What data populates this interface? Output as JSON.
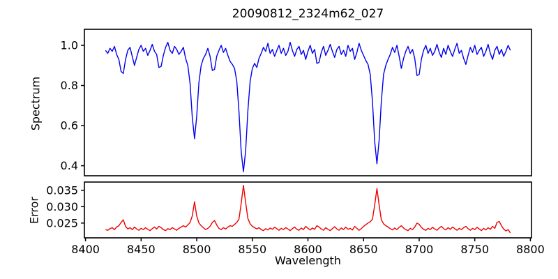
{
  "figure": {
    "title": "20090812_2324m62_027",
    "background": "#ffffff"
  },
  "chart_data": [
    {
      "type": "line",
      "panel": "spectrum",
      "title": "20090812_2324m62_027",
      "ylabel": "Spectrum",
      "line_color": "#0000ee",
      "grid": false,
      "legend": "none",
      "x_start": 8418,
      "x_step": 2,
      "xlim": [
        8399,
        8801
      ],
      "ylim": [
        0.35,
        1.08
      ],
      "yticks": [
        0.4,
        0.6,
        0.8,
        1.0
      ],
      "ytick_labels": [
        "0.4",
        "0.6",
        "0.8",
        "1.0"
      ],
      "absorption_line_centers": [
        8498,
        8542,
        8662
      ],
      "values": [
        0.975,
        0.96,
        0.985,
        0.97,
        0.995,
        0.955,
        0.93,
        0.87,
        0.86,
        0.93,
        0.975,
        0.99,
        0.945,
        0.9,
        0.94,
        0.98,
        1.0,
        0.97,
        0.985,
        0.95,
        0.975,
        1.005,
        0.97,
        0.955,
        0.89,
        0.895,
        0.95,
        0.99,
        1.015,
        0.975,
        0.96,
        0.995,
        0.98,
        0.955,
        0.97,
        0.99,
        0.935,
        0.9,
        0.81,
        0.64,
        0.535,
        0.645,
        0.815,
        0.9,
        0.935,
        0.955,
        0.985,
        0.945,
        0.875,
        0.88,
        0.945,
        0.975,
        1.0,
        0.965,
        0.985,
        0.95,
        0.92,
        0.905,
        0.885,
        0.82,
        0.67,
        0.47,
        0.37,
        0.475,
        0.675,
        0.82,
        0.885,
        0.91,
        0.89,
        0.935,
        0.96,
        0.99,
        0.97,
        1.01,
        0.96,
        0.98,
        0.945,
        0.975,
        1.0,
        0.96,
        0.985,
        0.95,
        0.97,
        1.015,
        0.975,
        0.945,
        0.98,
        0.995,
        0.955,
        0.975,
        0.93,
        0.97,
        1.0,
        0.96,
        0.98,
        0.91,
        0.915,
        0.965,
        0.995,
        0.95,
        0.975,
        1.005,
        0.97,
        0.94,
        0.98,
        0.995,
        0.955,
        0.975,
        0.945,
        1.0,
        0.97,
        0.985,
        0.93,
        0.965,
        1.01,
        0.975,
        0.95,
        0.925,
        0.905,
        0.855,
        0.72,
        0.52,
        0.41,
        0.525,
        0.72,
        0.855,
        0.9,
        0.93,
        0.955,
        0.99,
        0.965,
        1.0,
        0.945,
        0.885,
        0.935,
        0.97,
        0.995,
        0.96,
        0.98,
        0.935,
        0.85,
        0.855,
        0.93,
        0.975,
        1.0,
        0.96,
        0.985,
        0.95,
        0.97,
        1.005,
        0.965,
        0.94,
        0.985,
        0.955,
        1.0,
        0.97,
        0.945,
        0.98,
        1.01,
        0.96,
        0.975,
        0.935,
        0.905,
        0.95,
        0.99,
        0.965,
        1.0,
        0.955,
        0.975,
        0.99,
        0.945,
        0.97,
        1.005,
        0.96,
        0.93,
        0.975,
        0.995,
        0.955,
        0.98,
        0.945,
        0.97,
        1.0,
        0.975
      ]
    },
    {
      "type": "line",
      "panel": "error",
      "ylabel": "Error",
      "xlabel": "Wavelength",
      "line_color": "#ee0000",
      "grid": false,
      "legend": "none",
      "x_start": 8418,
      "x_step": 2,
      "xlim": [
        8399,
        8801
      ],
      "ylim": [
        0.0205,
        0.0375
      ],
      "yticks": [
        0.025,
        0.03,
        0.035
      ],
      "ytick_labels": [
        "0.025",
        "0.030",
        "0.035"
      ],
      "xticks": [
        8400,
        8450,
        8500,
        8550,
        8600,
        8650,
        8700,
        8750,
        8800
      ],
      "xtick_labels": [
        "8400",
        "8450",
        "8500",
        "8550",
        "8600",
        "8650",
        "8700",
        "8750",
        "8800"
      ],
      "values": [
        0.023,
        0.0228,
        0.0233,
        0.0236,
        0.023,
        0.0238,
        0.0242,
        0.0252,
        0.026,
        0.024,
        0.0232,
        0.0236,
        0.023,
        0.0238,
        0.0232,
        0.0228,
        0.0234,
        0.023,
        0.0236,
        0.0231,
        0.0227,
        0.0233,
        0.0238,
        0.0232,
        0.024,
        0.0236,
        0.023,
        0.0227,
        0.0233,
        0.023,
        0.0236,
        0.0232,
        0.0228,
        0.0234,
        0.0238,
        0.0242,
        0.0238,
        0.0244,
        0.0252,
        0.0272,
        0.0315,
        0.0272,
        0.025,
        0.0242,
        0.0236,
        0.023,
        0.0234,
        0.024,
        0.0252,
        0.0258,
        0.0244,
        0.0234,
        0.023,
        0.0236,
        0.0232,
        0.0238,
        0.0242,
        0.024,
        0.0246,
        0.0252,
        0.0262,
        0.031,
        0.0365,
        0.0312,
        0.0264,
        0.0248,
        0.024,
        0.0236,
        0.0232,
        0.0236,
        0.023,
        0.0227,
        0.0233,
        0.0229,
        0.0235,
        0.0231,
        0.0237,
        0.0233,
        0.0228,
        0.0234,
        0.023,
        0.0236,
        0.0232,
        0.0227,
        0.0233,
        0.0238,
        0.0231,
        0.0228,
        0.0235,
        0.023,
        0.024,
        0.0234,
        0.0229,
        0.0235,
        0.0231,
        0.0242,
        0.0238,
        0.0232,
        0.0228,
        0.0236,
        0.0231,
        0.0227,
        0.0233,
        0.0239,
        0.0232,
        0.0228,
        0.0235,
        0.023,
        0.0238,
        0.0231,
        0.0234,
        0.0229,
        0.024,
        0.0234,
        0.0228,
        0.0233,
        0.024,
        0.0245,
        0.025,
        0.0254,
        0.0262,
        0.0305,
        0.0355,
        0.0306,
        0.026,
        0.0248,
        0.0242,
        0.0238,
        0.0233,
        0.0229,
        0.0235,
        0.023,
        0.0237,
        0.0242,
        0.0235,
        0.023,
        0.0227,
        0.0234,
        0.023,
        0.0238,
        0.025,
        0.0246,
        0.0237,
        0.0231,
        0.0228,
        0.0234,
        0.023,
        0.0237,
        0.0232,
        0.0228,
        0.0235,
        0.024,
        0.0233,
        0.0229,
        0.0236,
        0.0231,
        0.0238,
        0.0233,
        0.0228,
        0.0234,
        0.023,
        0.0236,
        0.024,
        0.0233,
        0.0228,
        0.0234,
        0.023,
        0.0237,
        0.0232,
        0.0227,
        0.0234,
        0.0229,
        0.0236,
        0.0231,
        0.024,
        0.0234,
        0.0252,
        0.0255,
        0.0242,
        0.0232,
        0.0226,
        0.023,
        0.022
      ]
    }
  ]
}
